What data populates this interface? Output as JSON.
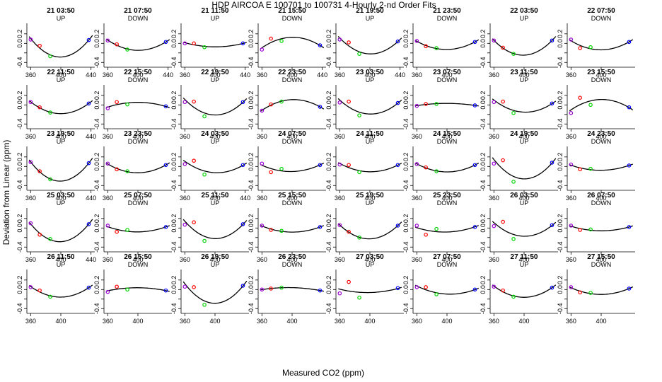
{
  "title": "HDP   AIRCOA E   100701 to 100731   4-Hourly 2-nd Order Fits",
  "xlabel": "Measured CO2 (ppm)",
  "ylabel": "Deviation from Linear (ppm)",
  "chart_data": {
    "type": "scatter",
    "layout": "small-multiples 5 rows x 8 columns",
    "xlim": [
      355,
      445
    ],
    "ylim": [
      -0.5,
      0.42
    ],
    "xticks_full": [
      360,
      400,
      440
    ],
    "xticks_partial": [
      360,
      400
    ],
    "yticks": [
      -0.4,
      -0.2,
      0.0,
      0.2
    ],
    "ytick_labels": [
      "-0.4",
      "",
      "0.0",
      "0.2"
    ],
    "colors": {
      "curve": "#000000",
      "pt1": "#9b00d6",
      "pt2": "#ff0000",
      "pt3": "#00d400",
      "pt4": "#0000ff"
    },
    "point_x": [
      360,
      372,
      386,
      437
    ],
    "panels": [
      {
        "label": "21 03:50",
        "mode": "UP",
        "pts": [
          0.08,
          -0.05,
          -0.27,
          0.07
        ],
        "full": true
      },
      {
        "label": "21 07:50",
        "mode": "DOWN",
        "pts": [
          0.06,
          -0.02,
          -0.13,
          0.03
        ],
        "full": true
      },
      {
        "label": "21 11:50",
        "mode": "UP",
        "pts": [
          0.0,
          0.0,
          -0.08,
          0.0
        ],
        "full": true
      },
      {
        "label": "21 15:50",
        "mode": "DOWN",
        "pts": [
          -0.13,
          0.1,
          0.05,
          -0.04
        ],
        "full": true
      },
      {
        "label": "21 19:50",
        "mode": "UP",
        "pts": [
          0.08,
          0.02,
          -0.22,
          0.04
        ],
        "full": true
      },
      {
        "label": "21 23:50",
        "mode": "DOWN",
        "pts": [
          0.05,
          -0.06,
          -0.1,
          0.03
        ],
        "full": false
      },
      {
        "label": "22 03:50",
        "mode": "UP",
        "pts": [
          0.06,
          -0.09,
          -0.22,
          0.06
        ],
        "full": false
      },
      {
        "label": "22 07:50",
        "mode": "DOWN",
        "pts": [
          0.08,
          -0.1,
          -0.08,
          0.03
        ],
        "full": false
      },
      {
        "label": "22 11:50",
        "mode": "UP",
        "pts": [
          0.06,
          -0.05,
          -0.16,
          0.03
        ],
        "full": true
      },
      {
        "label": "22 15:50",
        "mode": "DOWN",
        "pts": [
          -0.07,
          0.06,
          0.01,
          -0.03
        ],
        "full": false
      },
      {
        "label": "22 19:50",
        "mode": "UP",
        "pts": [
          0.06,
          0.07,
          -0.24,
          0.06
        ],
        "full": false
      },
      {
        "label": "22 23:50",
        "mode": "DOWN",
        "pts": [
          -0.12,
          0.01,
          0.07,
          -0.04
        ],
        "full": false
      },
      {
        "label": "23 03:50",
        "mode": "UP",
        "pts": [
          0.05,
          0.07,
          -0.22,
          0.04
        ],
        "full": false
      },
      {
        "label": "23 07:50",
        "mode": "DOWN",
        "pts": [
          -0.02,
          0.02,
          0.02,
          -0.01
        ],
        "full": false
      },
      {
        "label": "23 11:50",
        "mode": "UP",
        "pts": [
          0.06,
          0.07,
          -0.17,
          0.03
        ],
        "full": false
      },
      {
        "label": "23 15:50",
        "mode": "DOWN",
        "pts": [
          -0.17,
          0.15,
          0.0,
          -0.05
        ],
        "full": false
      },
      {
        "label": "23 19:50",
        "mode": "UP",
        "pts": [
          0.09,
          -0.1,
          -0.27,
          0.07
        ],
        "full": true
      },
      {
        "label": "23 23:50",
        "mode": "DOWN",
        "pts": [
          0.06,
          -0.06,
          -0.1,
          0.03
        ],
        "full": false
      },
      {
        "label": "24 03:50",
        "mode": "UP",
        "pts": [
          0.05,
          0.12,
          -0.17,
          0.03
        ],
        "full": true
      },
      {
        "label": "24 07:50",
        "mode": "DOWN",
        "pts": [
          0.06,
          -0.12,
          -0.05,
          0.03
        ],
        "full": false
      },
      {
        "label": "24 11:50",
        "mode": "UP",
        "pts": [
          0.04,
          0.03,
          -0.12,
          0.03
        ],
        "full": false
      },
      {
        "label": "24 15:50",
        "mode": "DOWN",
        "pts": [
          0.05,
          -0.02,
          -0.1,
          0.03
        ],
        "full": false
      },
      {
        "label": "24 19:50",
        "mode": "UP",
        "pts": [
          0.06,
          0.13,
          -0.32,
          0.08
        ],
        "full": false
      },
      {
        "label": "24 23:50",
        "mode": "DOWN",
        "pts": [
          0.04,
          -0.06,
          -0.05,
          0.02
        ],
        "full": false
      },
      {
        "label": "25 03:50",
        "mode": "UP",
        "pts": [
          0.1,
          -0.14,
          -0.23,
          0.08
        ],
        "full": true
      },
      {
        "label": "25 07:50",
        "mode": "DOWN",
        "pts": [
          0.05,
          -0.08,
          -0.04,
          0.02
        ],
        "full": false
      },
      {
        "label": "25 11:50",
        "mode": "UP",
        "pts": [
          0.07,
          0.12,
          -0.27,
          0.08
        ],
        "full": false
      },
      {
        "label": "25 15:50",
        "mode": "DOWN",
        "pts": [
          0.05,
          -0.04,
          -0.06,
          0.02
        ],
        "full": false
      },
      {
        "label": "25 19:50",
        "mode": "UP",
        "pts": [
          0.06,
          -0.08,
          -0.2,
          0.05
        ],
        "full": false
      },
      {
        "label": "25 23:50",
        "mode": "DOWN",
        "pts": [
          0.05,
          -0.14,
          -0.02,
          0.02
        ],
        "full": false
      },
      {
        "label": "26 03:50",
        "mode": "UP",
        "pts": [
          0.04,
          0.13,
          -0.23,
          0.06
        ],
        "full": false
      },
      {
        "label": "26 07:50",
        "mode": "DOWN",
        "pts": [
          0.05,
          -0.04,
          -0.03,
          0.02
        ],
        "full": false
      },
      {
        "label": "26 11:50",
        "mode": "UP",
        "pts": [
          0.05,
          -0.02,
          -0.15,
          0.04
        ],
        "full": false
      },
      {
        "label": "26 15:50",
        "mode": "DOWN",
        "pts": [
          -0.05,
          0.06,
          0.0,
          -0.02
        ],
        "full": false
      },
      {
        "label": "26 19:50",
        "mode": "UP",
        "pts": [
          0.06,
          0.05,
          -0.32,
          0.08
        ],
        "full": false
      },
      {
        "label": "26 23:50",
        "mode": "DOWN",
        "pts": [
          0.0,
          0.02,
          0.04,
          -0.02
        ],
        "full": false
      },
      {
        "label": "27 03:50",
        "mode": "UP",
        "pts": [
          -0.08,
          0.16,
          -0.17,
          0.03
        ],
        "full": false
      },
      {
        "label": "27 07:50",
        "mode": "DOWN",
        "pts": [
          0.05,
          0.05,
          -0.1,
          0.0
        ],
        "full": false
      },
      {
        "label": "27 11:50",
        "mode": "UP",
        "pts": [
          0.06,
          -0.02,
          -0.15,
          0.04
        ],
        "full": false
      },
      {
        "label": "27 15:50",
        "mode": "DOWN",
        "pts": [
          0.05,
          -0.06,
          -0.07,
          0.02
        ],
        "full": false
      }
    ]
  }
}
